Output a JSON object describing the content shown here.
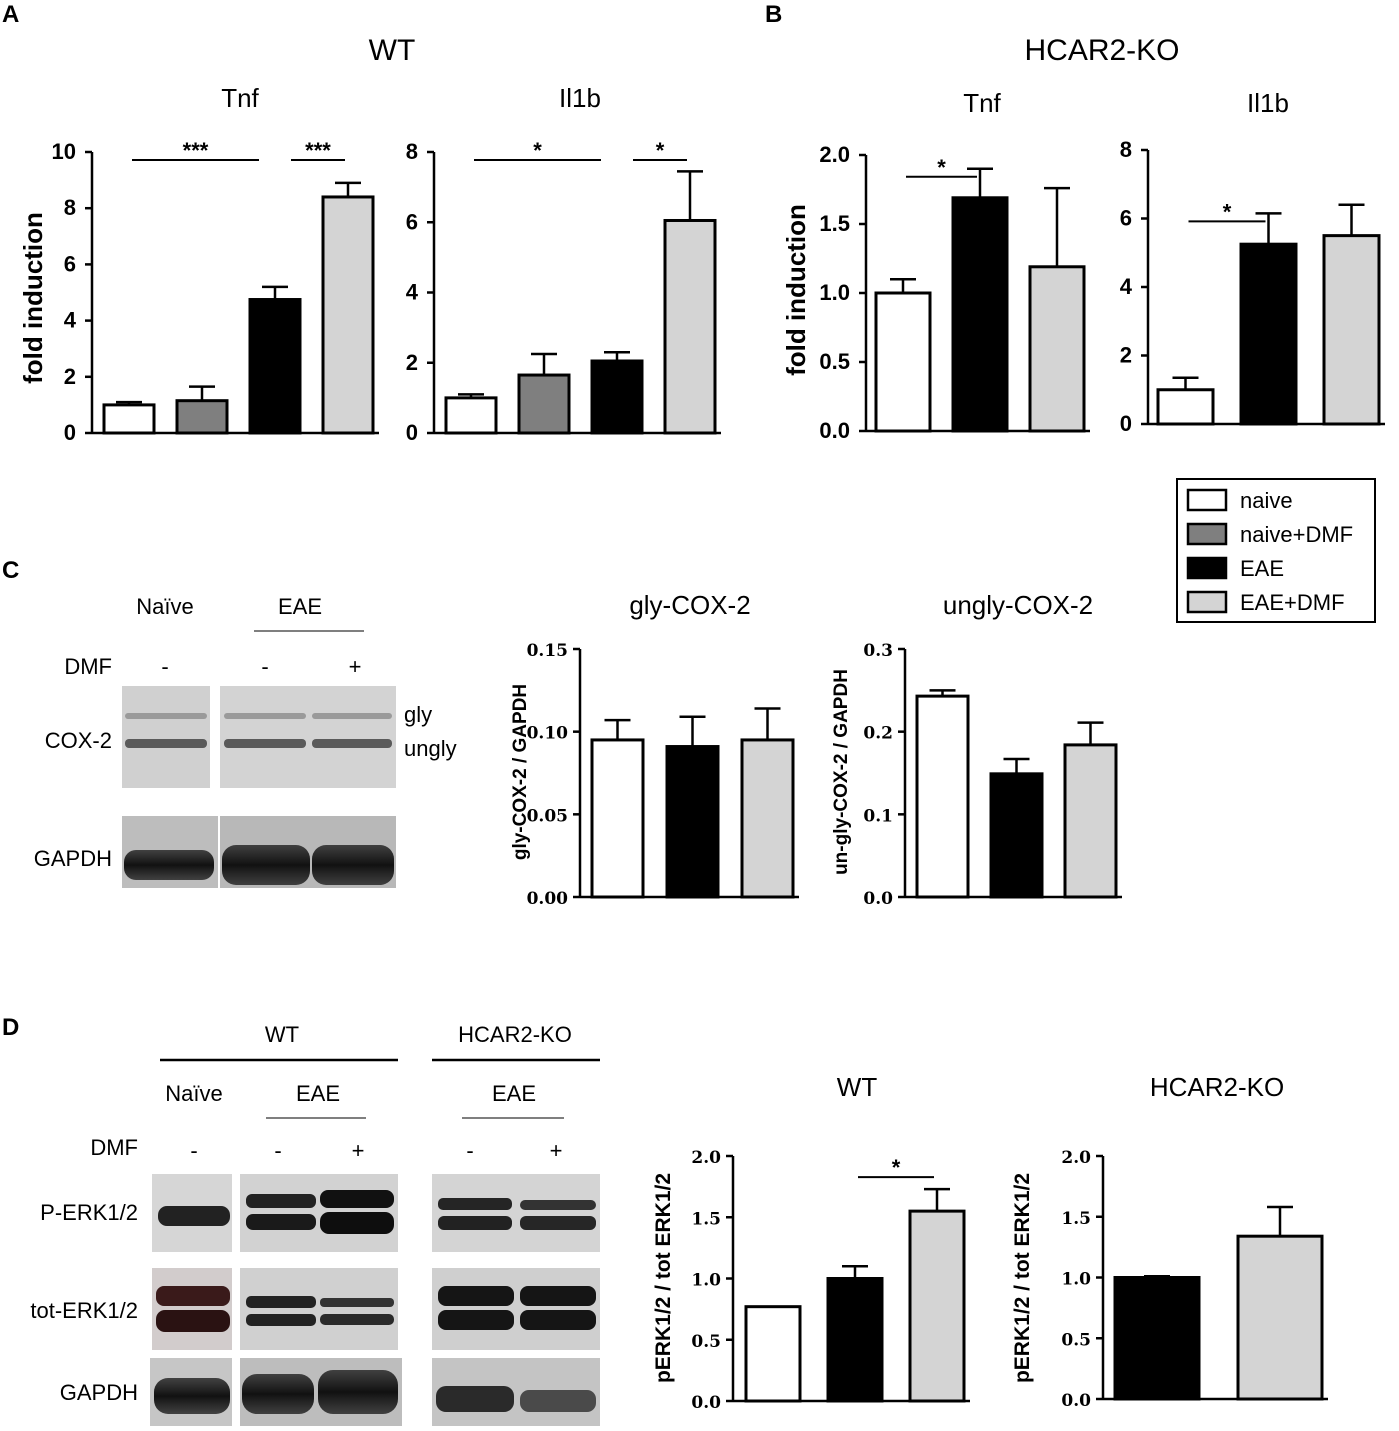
{
  "panels": {
    "A": {
      "letter": "A",
      "title": "WT"
    },
    "B": {
      "letter": "B",
      "title": "HCAR2-KO"
    },
    "C": {
      "letter": "C"
    },
    "D": {
      "letter": "D"
    }
  },
  "legend": [
    {
      "label": "naive",
      "color": "#ffffff"
    },
    {
      "label": "naive+DMF",
      "color": "#7f7f7f"
    },
    {
      "label": "EAE",
      "color": "#000000"
    },
    {
      "label": "EAE+DMF",
      "color": "#d4d4d4"
    }
  ],
  "blots": {
    "C": {
      "header": {
        "naive": "Naïve",
        "eae": "EAE"
      },
      "dmf": {
        "label": "DMF",
        "marks": [
          "-",
          "-",
          "+"
        ]
      },
      "rows": [
        "COX-2",
        "GAPDH"
      ],
      "band_labels": [
        "gly",
        "ungly"
      ]
    },
    "D": {
      "groups": [
        "WT",
        "HCAR2-KO"
      ],
      "sub": {
        "naive": "Naïve",
        "eae_wt": "EAE",
        "eae_ko": "EAE"
      },
      "dmf": {
        "label": "DMF",
        "marks": [
          "-",
          "-",
          "+",
          "-",
          "+"
        ]
      },
      "rows": [
        "P-ERK1/2",
        "tot-ERK1/2",
        "GAPDH"
      ]
    }
  },
  "chart_data": [
    {
      "id": "A_tnf",
      "type": "bar",
      "title": "Tnf",
      "ylabel": "fold induction",
      "categories": [
        "naive",
        "naive+DMF",
        "EAE",
        "EAE+DMF"
      ],
      "values": [
        1.0,
        1.15,
        4.75,
        8.4
      ],
      "errors": [
        0.1,
        0.5,
        0.45,
        0.5
      ],
      "ylim": [
        0,
        10
      ],
      "yticks": [
        "0",
        "2",
        "4",
        "6",
        "8",
        "10"
      ],
      "significance": [
        {
          "from": 0,
          "to": 2,
          "label": "***"
        },
        {
          "from": 2,
          "to": 3,
          "label": "***"
        }
      ]
    },
    {
      "id": "A_il1b",
      "type": "bar",
      "title": "Il1b",
      "ylabel": "",
      "categories": [
        "naive",
        "naive+DMF",
        "EAE",
        "EAE+DMF"
      ],
      "values": [
        1.0,
        1.65,
        2.05,
        6.05
      ],
      "errors": [
        0.1,
        0.6,
        0.25,
        1.4
      ],
      "ylim": [
        0,
        8
      ],
      "yticks": [
        "0",
        "2",
        "4",
        "6",
        "8"
      ],
      "significance": [
        {
          "from": 0,
          "to": 2,
          "label": "*"
        },
        {
          "from": 2,
          "to": 3,
          "label": "*"
        }
      ]
    },
    {
      "id": "B_tnf",
      "type": "bar",
      "title": "Tnf",
      "ylabel": "fold induction",
      "categories": [
        "naive",
        "EAE",
        "EAE+DMF"
      ],
      "values": [
        1.0,
        1.69,
        1.19
      ],
      "errors": [
        0.1,
        0.21,
        0.57
      ],
      "ylim": [
        0,
        2.0
      ],
      "yticks": [
        "0.0",
        "0.5",
        "1.0",
        "1.5",
        "2.0"
      ],
      "significance": [
        {
          "from": 0,
          "to": 1,
          "label": "*"
        }
      ]
    },
    {
      "id": "B_il1b",
      "type": "bar",
      "title": "Il1b",
      "ylabel": "",
      "categories": [
        "naive",
        "EAE",
        "EAE+DMF"
      ],
      "values": [
        1.0,
        5.25,
        5.5
      ],
      "errors": [
        0.35,
        0.9,
        0.9
      ],
      "ylim": [
        0,
        8
      ],
      "yticks": [
        "0",
        "2",
        "4",
        "6",
        "8"
      ],
      "significance": [
        {
          "from": 0,
          "to": 1,
          "label": "*"
        }
      ]
    },
    {
      "id": "C_gly",
      "type": "bar",
      "title": "gly-COX-2",
      "ylabel": "gly-COX-2 / GAPDH",
      "categories": [
        "naive",
        "EAE",
        "EAE+DMF"
      ],
      "values": [
        0.095,
        0.091,
        0.095
      ],
      "errors": [
        0.012,
        0.018,
        0.019
      ],
      "ylim": [
        0,
        0.15
      ],
      "yticks": [
        "0.00",
        "0.05",
        "0.10",
        "0.15"
      ],
      "significance": []
    },
    {
      "id": "C_ungly",
      "type": "bar",
      "title": "ungly-COX-2",
      "ylabel": "un-gly-COX-2 / GAPDH",
      "categories": [
        "naive",
        "EAE",
        "EAE+DMF"
      ],
      "values": [
        0.243,
        0.149,
        0.184
      ],
      "errors": [
        0.007,
        0.018,
        0.027
      ],
      "ylim": [
        0,
        0.3
      ],
      "yticks": [
        "0.0",
        "0.1",
        "0.2",
        "0.3"
      ],
      "significance": []
    },
    {
      "id": "D_wt",
      "type": "bar",
      "title": "WT",
      "ylabel": "pERK1/2 / tot ERK1/2",
      "categories": [
        "naive",
        "EAE",
        "EAE+DMF"
      ],
      "values": [
        0.77,
        1.0,
        1.55
      ],
      "errors": [
        0,
        0.1,
        0.18
      ],
      "ylim": [
        0,
        2.0
      ],
      "yticks": [
        "0.0",
        "0.5",
        "1.0",
        "1.5",
        "2.0"
      ],
      "significance": [
        {
          "from": 1,
          "to": 2,
          "label": "*"
        }
      ]
    },
    {
      "id": "D_ko",
      "type": "bar",
      "title": "HCAR2-KO",
      "ylabel": "pERK1/2 / tot ERK1/2",
      "categories": [
        "EAE",
        "EAE+DMF"
      ],
      "values": [
        1.0,
        1.34
      ],
      "errors": [
        0.01,
        0.24
      ],
      "ylim": [
        0,
        2.0
      ],
      "yticks": [
        "0.0",
        "0.5",
        "1.0",
        "1.5",
        "2.0"
      ],
      "significance": []
    }
  ]
}
